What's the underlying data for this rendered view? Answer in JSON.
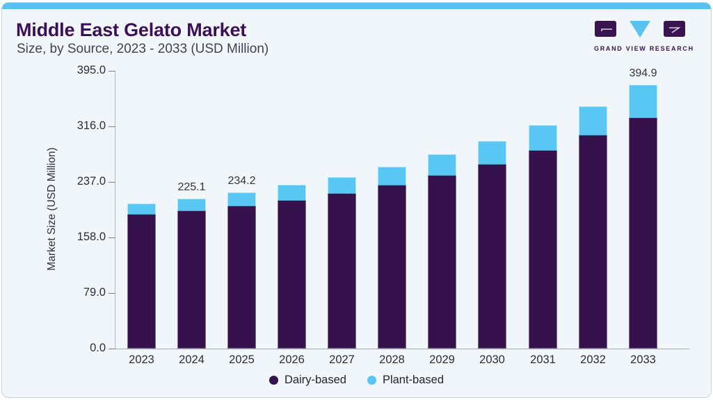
{
  "header": {
    "title": "Middle East Gelato Market",
    "subtitle": "Size, by Source, 2023 - 2033 (USD Million)",
    "logo_text": "GRAND VIEW RESEARCH"
  },
  "colors": {
    "accent_bar": "#57c3ee",
    "card_background": "#f0f6fa",
    "title_purple": "#3c1056",
    "dairy_purple": "#36124d",
    "plant_blue": "#58c7f3",
    "axis_text": "#2e2d38"
  },
  "chart_data": {
    "type": "bar",
    "stacked": true,
    "title": "Middle East Gelato Market Size, by Source, 2023 - 2033 (USD Million)",
    "xlabel": "",
    "ylabel": "Market Size (USD Million)",
    "ylim": [
      0,
      395
    ],
    "ytick_labels": [
      "395.0",
      "316.0",
      "237.0",
      "158.0",
      "79.0",
      "0.0"
    ],
    "grid": "off",
    "legend_position": "bottom",
    "categories": [
      "2023",
      "2024",
      "2025",
      "2026",
      "2027",
      "2028",
      "2029",
      "2030",
      "2031",
      "2032",
      "2033"
    ],
    "series": [
      {
        "name": "Dairy-based",
        "color": "#36124d",
        "values": [
          200.2,
          206.3,
          213.1,
          221.0,
          232.0,
          244.0,
          258.8,
          275.2,
          296.4,
          319.4,
          345.4
        ]
      },
      {
        "name": "Plant-based",
        "color": "#58c7f3",
        "values": [
          17.0,
          18.8,
          21.1,
          23.4,
          25.0,
          28.1,
          31.8,
          35.6,
          38.4,
          43.8,
          49.5
        ]
      }
    ],
    "totals": [
      217.2,
      225.1,
      234.2,
      244.4,
      257.0,
      272.1,
      290.6,
      310.8,
      334.8,
      363.2,
      394.9
    ],
    "bar_value_labels": [
      "",
      "225.1",
      "234.2",
      "",
      "",
      "",
      "",
      "",
      "",
      "",
      "394.9"
    ],
    "legend": [
      "Dairy-based",
      "Plant-based"
    ]
  }
}
